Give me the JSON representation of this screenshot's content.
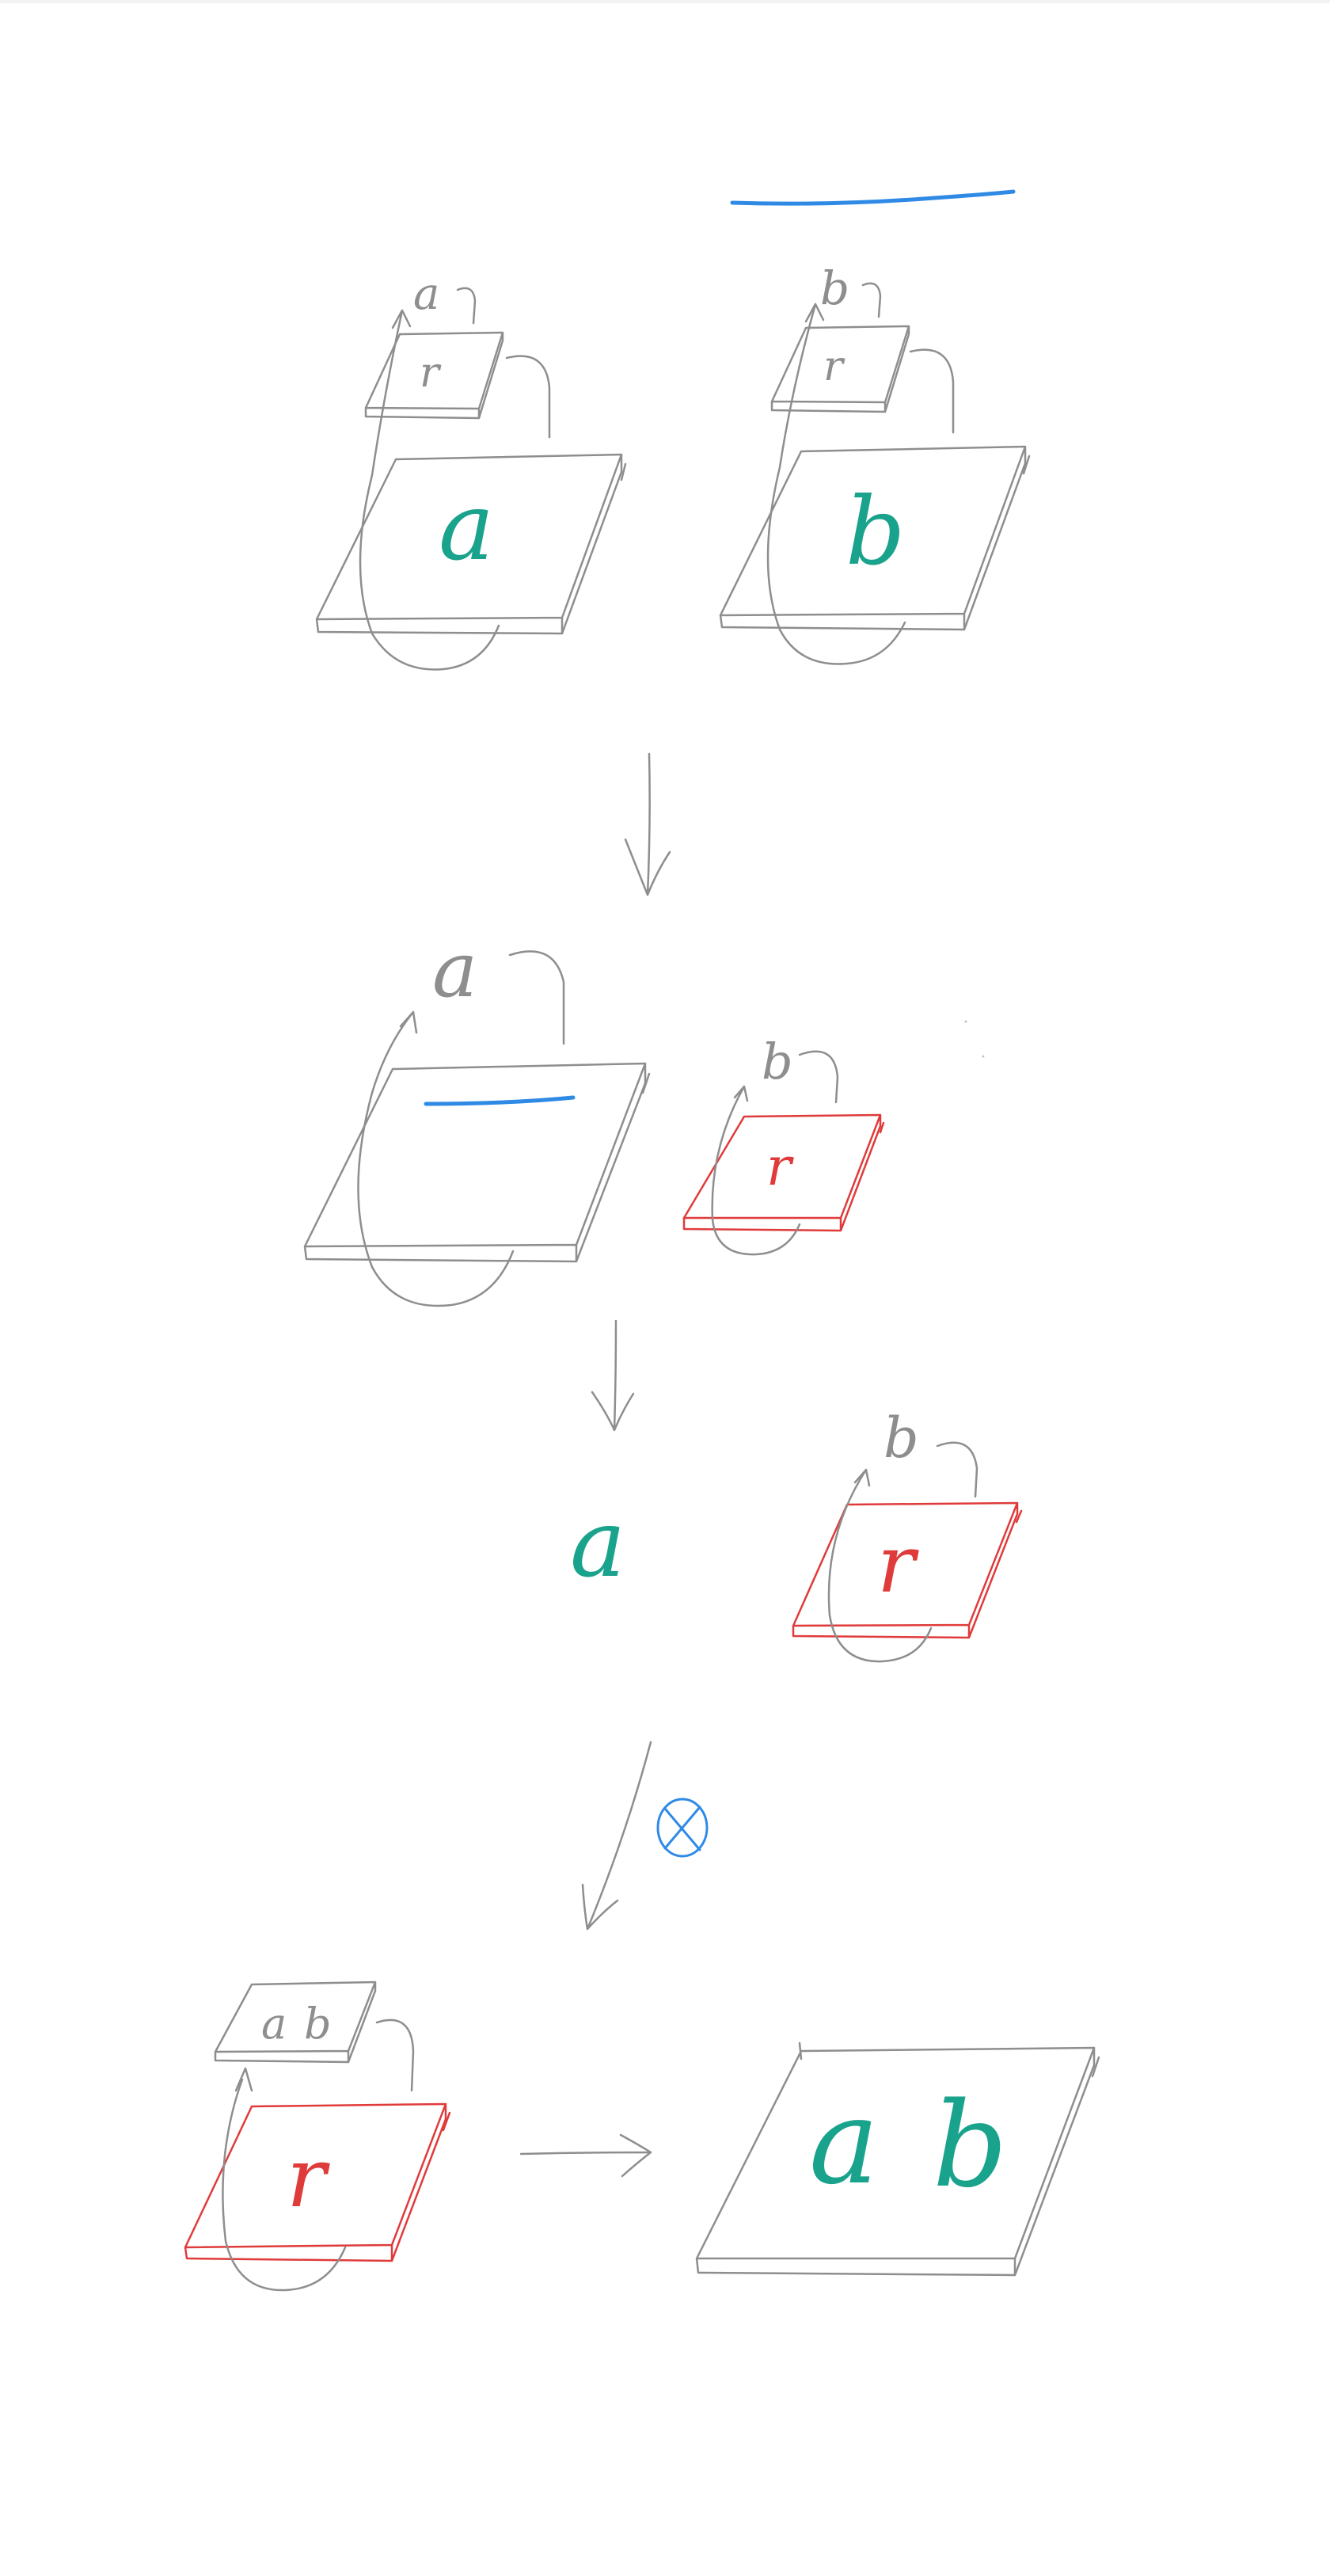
{
  "colors": {
    "gray": "#8e8e8e",
    "teal": "#1aa38c",
    "red": "#e03b3b",
    "blue": "#2f8ae6",
    "paper": "#ffffff"
  },
  "labels": {
    "step1_left_content": "a",
    "step1_left_ref": "r",
    "step1_left_var": "a",
    "step1_right_content": "b",
    "step1_right_ref": "r",
    "step1_right_var": "b",
    "step2_left_var": "a",
    "step2_right_ref": "r",
    "step2_right_var": "b",
    "step3_value": "a",
    "step3_right_ref": "r",
    "step3_right_var": "b",
    "step4_small_box_a": "a",
    "step4_small_box_b": "b",
    "step4_left_ref": "r",
    "step4_result_a": "a",
    "step4_result_b": "b"
  },
  "symbols": {
    "tensor": "otimes-icon"
  }
}
